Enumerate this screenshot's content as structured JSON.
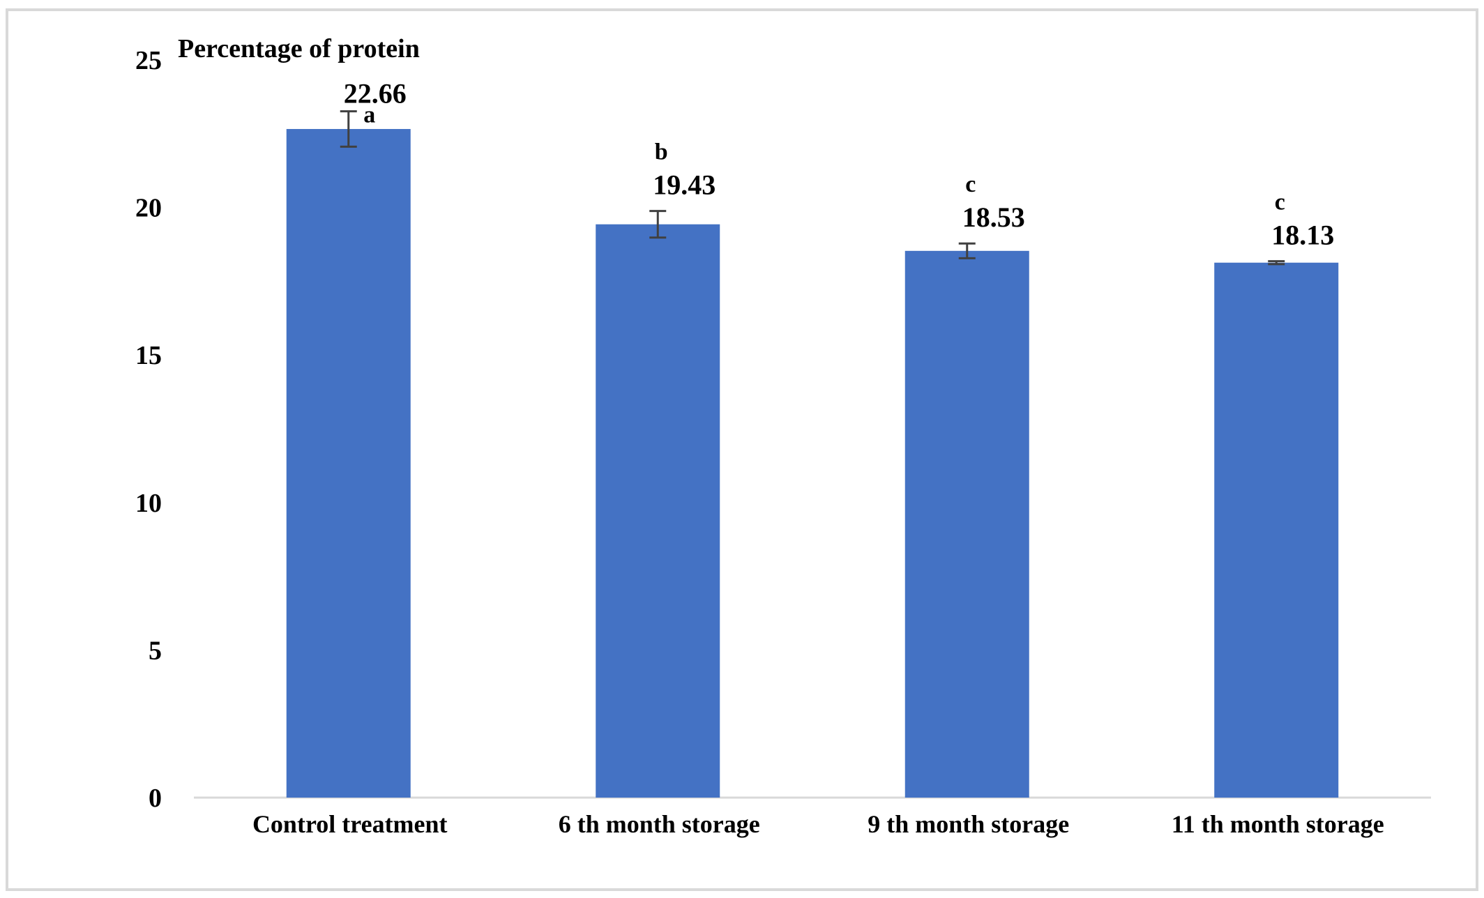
{
  "chart_data": {
    "type": "bar",
    "title": "Percentage of protein",
    "xlabel": "",
    "ylabel": "",
    "categories": [
      "Control treatment",
      "6 th month storage",
      "9 th month storage",
      "11 th month storage"
    ],
    "values": [
      22.66,
      19.43,
      18.53,
      18.13
    ],
    "data_labels": [
      "22.66",
      "19.43",
      "18.53",
      "18.13"
    ],
    "significance_letters": [
      "a",
      "b",
      "c",
      "c"
    ],
    "error": [
      0.6,
      0.45,
      0.25,
      0.05
    ],
    "ylim": [
      0,
      25
    ],
    "yticks": [
      0,
      5,
      10,
      15,
      20,
      25
    ],
    "ytick_labels": [
      "0",
      "5",
      "10",
      "15",
      "20",
      "25"
    ],
    "grid": false,
    "legend": "none",
    "bar_color": "#4472C4",
    "error_bar_color": "#404040",
    "axis_color": "#D9D9D9"
  }
}
